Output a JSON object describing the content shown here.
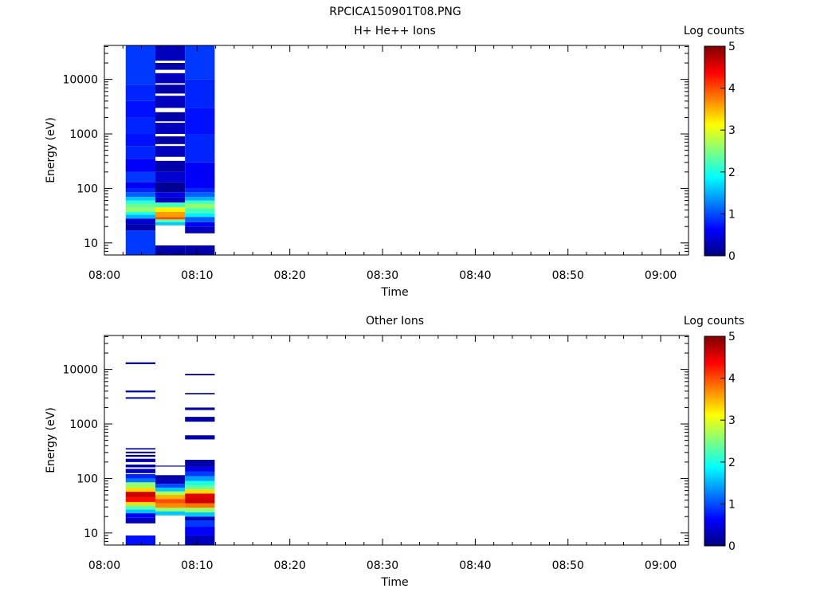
{
  "figure_title": "RPCICA150901T08.PNG",
  "colormap": [
    "#00007f",
    "#0000ff",
    "#007fff",
    "#00ffff",
    "#7fff7f",
    "#ffff00",
    "#ff7f00",
    "#ff0000",
    "#7f0000"
  ],
  "chart_data": [
    {
      "type": "heatmap",
      "title": "H+ He++ Ions",
      "xlabel": "Time",
      "ylabel": "Energy (eV)",
      "x_ticks": [
        "08:00",
        "08:10",
        "08:20",
        "08:30",
        "08:40",
        "08:50",
        "09:00"
      ],
      "x_range_minutes": [
        0,
        63
      ],
      "y_scale": "log",
      "y_ticks": [
        10,
        100,
        1000,
        10000
      ],
      "y_range": [
        6,
        42000
      ],
      "colorbar": {
        "label": "Log counts",
        "range": [
          0,
          5
        ],
        "ticks": [
          0,
          1,
          2,
          3,
          4,
          5
        ]
      },
      "columns": [
        {
          "t_start": 2.3,
          "t_end": 5.5,
          "bands": [
            [
              6,
              17,
              0.9
            ],
            [
              17,
              22,
              0.2
            ],
            [
              22,
              28,
              0.4
            ],
            [
              28,
              33,
              1.5
            ],
            [
              33,
              37,
              2.0
            ],
            [
              37,
              44,
              2.6
            ],
            [
              44,
              52,
              2.4
            ],
            [
              52,
              60,
              2.1
            ],
            [
              60,
              70,
              1.6
            ],
            [
              70,
              85,
              1.1
            ],
            [
              85,
              100,
              0.8
            ],
            [
              100,
              130,
              0.6
            ],
            [
              130,
              200,
              0.9
            ],
            [
              200,
              350,
              0.6
            ],
            [
              350,
              600,
              0.8
            ],
            [
              600,
              1000,
              0.7
            ],
            [
              1000,
              2000,
              0.8
            ],
            [
              2000,
              4000,
              0.7
            ],
            [
              4000,
              8000,
              0.8
            ],
            [
              8000,
              42000,
              0.9
            ]
          ]
        },
        {
          "t_start": 5.5,
          "t_end": 8.7,
          "bands": [
            [
              6,
              9,
              0.2
            ],
            [
              21,
              24,
              1.6
            ],
            [
              24,
              27,
              2.3
            ],
            [
              27,
              30,
              4.0
            ],
            [
              30,
              37,
              3.6
            ],
            [
              37,
              45,
              3.2
            ],
            [
              45,
              55,
              2.2
            ],
            [
              55,
              68,
              0.3
            ],
            [
              68,
              85,
              0.5
            ],
            [
              85,
              130,
              0.1
            ],
            [
              130,
              200,
              0.4
            ],
            [
              200,
              320,
              0.2
            ],
            [
              380,
              600,
              0.3
            ],
            [
              650,
              900,
              0.2
            ],
            [
              1000,
              1600,
              0.3
            ],
            [
              1700,
              2500,
              0.2
            ],
            [
              3000,
              5000,
              0.3
            ],
            [
              5500,
              8000,
              0.2
            ],
            [
              8500,
              13000,
              0.3
            ],
            [
              15000,
              20000,
              0.2
            ],
            [
              22000,
              42000,
              0.3
            ]
          ]
        },
        {
          "t_start": 8.7,
          "t_end": 11.9,
          "bands": [
            [
              6,
              9,
              0.2
            ],
            [
              15,
              20,
              0.3
            ],
            [
              20,
              24,
              0.6
            ],
            [
              24,
              30,
              1.1
            ],
            [
              30,
              35,
              1.8
            ],
            [
              35,
              43,
              2.2
            ],
            [
              43,
              52,
              2.6
            ],
            [
              52,
              60,
              2.2
            ],
            [
              60,
              70,
              1.5
            ],
            [
              70,
              85,
              1.1
            ],
            [
              85,
              100,
              0.8
            ],
            [
              100,
              300,
              0.6
            ],
            [
              300,
              1000,
              0.8
            ],
            [
              1000,
              3000,
              0.7
            ],
            [
              3000,
              10000,
              0.8
            ],
            [
              10000,
              42000,
              0.9
            ]
          ]
        }
      ]
    },
    {
      "type": "heatmap",
      "title": "Other Ions",
      "xlabel": "Time",
      "ylabel": "Energy (eV)",
      "x_ticks": [
        "08:00",
        "08:10",
        "08:20",
        "08:30",
        "08:40",
        "08:50",
        "09:00"
      ],
      "x_range_minutes": [
        0,
        63
      ],
      "y_scale": "log",
      "y_ticks": [
        10,
        100,
        1000,
        10000
      ],
      "y_range": [
        6,
        42000
      ],
      "colorbar": {
        "label": "Log counts",
        "range": [
          0,
          5
        ],
        "ticks": [
          0,
          1,
          2,
          3,
          4,
          5
        ]
      },
      "columns": [
        {
          "t_start": 2.3,
          "t_end": 5.5,
          "bands": [
            [
              6,
              9,
              0.7
            ],
            [
              15,
              19,
              0.3
            ],
            [
              19,
              23,
              0.6
            ],
            [
              23,
              27,
              1.6
            ],
            [
              27,
              32,
              2.3
            ],
            [
              32,
              37,
              3.3
            ],
            [
              37,
              46,
              4.3
            ],
            [
              46,
              57,
              4.6
            ],
            [
              57,
              68,
              3.3
            ],
            [
              68,
              85,
              2.6
            ],
            [
              85,
              100,
              1.2
            ],
            [
              100,
              120,
              0.8
            ],
            [
              125,
              150,
              0.3
            ],
            [
              160,
              180,
              0.3
            ],
            [
              200,
              230,
              0.2
            ],
            [
              250,
              270,
              0.2
            ],
            [
              290,
              310,
              0.2
            ],
            [
              340,
              360,
              0.2
            ],
            [
              2900,
              3100,
              0.2
            ],
            [
              3800,
              4100,
              0.2
            ],
            [
              12500,
              13500,
              0.2
            ]
          ]
        },
        {
          "t_start": 5.5,
          "t_end": 8.7,
          "bands": [
            [
              21,
              25,
              1.6
            ],
            [
              25,
              29,
              2.6
            ],
            [
              29,
              35,
              3.7
            ],
            [
              35,
              42,
              4.0
            ],
            [
              42,
              50,
              3.5
            ],
            [
              50,
              58,
              2.7
            ],
            [
              58,
              68,
              1.6
            ],
            [
              68,
              80,
              1.0
            ],
            [
              80,
              95,
              0.3
            ],
            [
              95,
              115,
              0.2
            ],
            [
              165,
              172,
              0.1
            ]
          ]
        },
        {
          "t_start": 8.7,
          "t_end": 11.9,
          "bands": [
            [
              6,
              9,
              0.3
            ],
            [
              9,
              13,
              0.6
            ],
            [
              13,
              17,
              0.9
            ],
            [
              17,
              20,
              0.3
            ],
            [
              20,
              24,
              1.6
            ],
            [
              24,
              29,
              2.6
            ],
            [
              29,
              35,
              3.8
            ],
            [
              35,
              43,
              4.6
            ],
            [
              43,
              53,
              4.5
            ],
            [
              53,
              63,
              3.3
            ],
            [
              63,
              75,
              2.4
            ],
            [
              75,
              90,
              2.0
            ],
            [
              90,
              110,
              1.4
            ],
            [
              110,
              135,
              0.9
            ],
            [
              135,
              165,
              0.5
            ],
            [
              165,
              220,
              0.2
            ],
            [
              520,
              620,
              0.2
            ],
            [
              1100,
              1350,
              0.2
            ],
            [
              1800,
              2000,
              0.2
            ],
            [
              3500,
              3700,
              0.2
            ],
            [
              7800,
              8300,
              0.2
            ]
          ]
        }
      ]
    }
  ]
}
